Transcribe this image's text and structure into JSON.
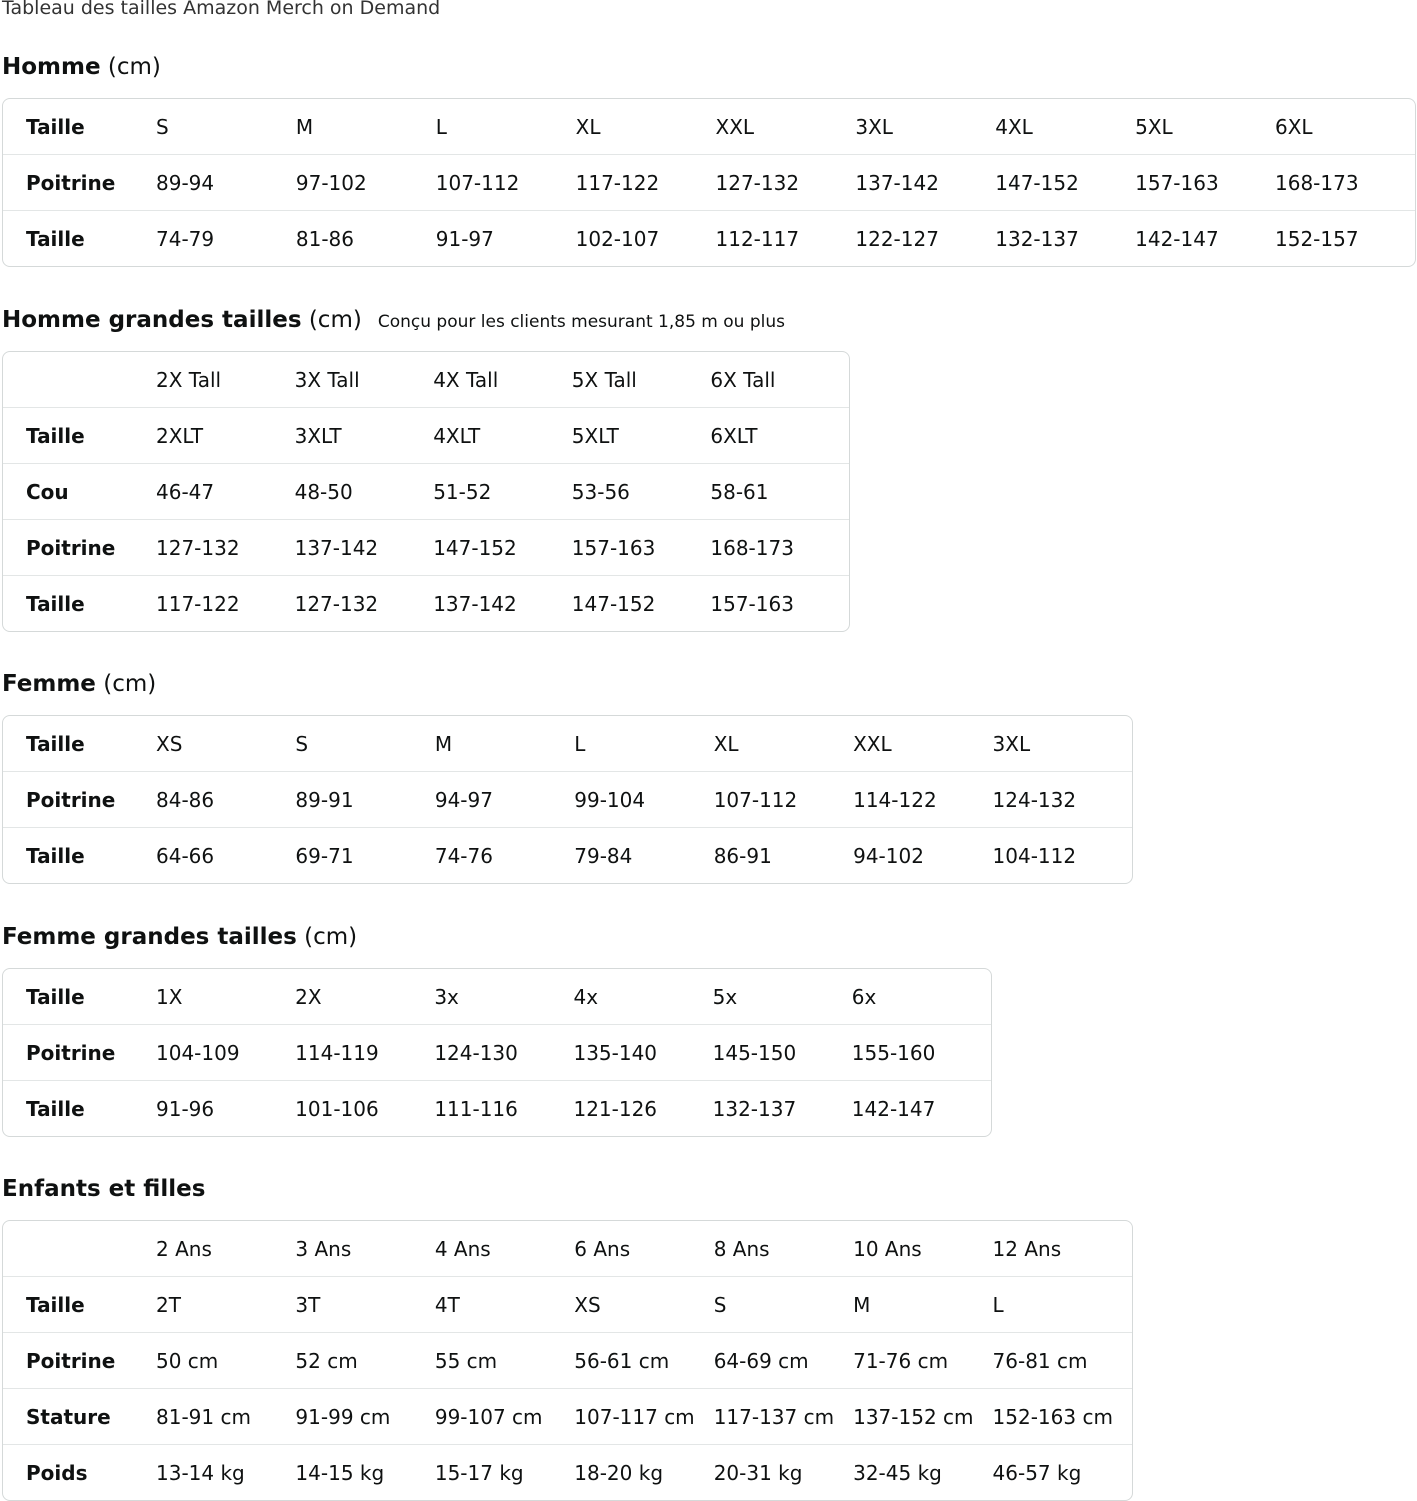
{
  "title": "Tableau des tailles Amazon Merch on Demand",
  "sections": [
    {
      "name": "Homme",
      "unit": "(cm)",
      "note": "",
      "rows": [
        {
          "label": "Taille",
          "cells": [
            "S",
            "M",
            "L",
            "XL",
            "XXL",
            "3XL",
            "4XL",
            "5XL",
            "6XL"
          ]
        },
        {
          "label": "Poitrine",
          "cells": [
            "89-94",
            "97-102",
            "107-112",
            "117-122",
            "127-132",
            "137-142",
            "147-152",
            "157-163",
            "168-173"
          ]
        },
        {
          "label": "Taille",
          "cells": [
            "74-79",
            "81-86",
            "91-97",
            "102-107",
            "112-117",
            "122-127",
            "132-137",
            "142-147",
            "152-157"
          ]
        }
      ]
    },
    {
      "name": "Homme grandes tailles",
      "unit": "(cm)",
      "note": "Conçu pour les clients mesurant 1,85 m ou plus",
      "rows": [
        {
          "label": "",
          "cells": [
            "2X Tall",
            "3X Tall",
            "4X Tall",
            "5X Tall",
            "6X Tall"
          ]
        },
        {
          "label": "Taille",
          "cells": [
            "2XLT",
            "3XLT",
            "4XLT",
            "5XLT",
            "6XLT"
          ]
        },
        {
          "label": "Cou",
          "cells": [
            "46-47",
            "48-50",
            "51-52",
            "53-56",
            "58-61"
          ]
        },
        {
          "label": "Poitrine",
          "cells": [
            "127-132",
            "137-142",
            "147-152",
            "157-163",
            "168-173"
          ]
        },
        {
          "label": "Taille",
          "cells": [
            "117-122",
            "127-132",
            "137-142",
            "147-152",
            "157-163"
          ]
        }
      ]
    },
    {
      "name": "Femme",
      "unit": "(cm)",
      "note": "",
      "rows": [
        {
          "label": "Taille",
          "cells": [
            "XS",
            "S",
            "M",
            "L",
            "XL",
            "XXL",
            "3XL"
          ]
        },
        {
          "label": "Poitrine",
          "cells": [
            "84-86",
            "89-91",
            "94-97",
            "99-104",
            "107-112",
            "114-122",
            "124-132"
          ]
        },
        {
          "label": "Taille",
          "cells": [
            "64-66",
            "69-71",
            "74-76",
            "79-84",
            "86-91",
            "94-102",
            "104-112"
          ]
        }
      ]
    },
    {
      "name": "Femme grandes tailles",
      "unit": "(cm)",
      "note": "",
      "rows": [
        {
          "label": "Taille",
          "cells": [
            "1X",
            "2X",
            "3x",
            "4x",
            "5x",
            "6x"
          ]
        },
        {
          "label": "Poitrine",
          "cells": [
            "104-109",
            "114-119",
            "124-130",
            "135-140",
            "145-150",
            "155-160"
          ]
        },
        {
          "label": "Taille",
          "cells": [
            "91-96",
            "101-106",
            "111-116",
            "121-126",
            "132-137",
            "142-147"
          ]
        }
      ]
    },
    {
      "name": "Enfants et filles",
      "unit": "",
      "note": "",
      "rows": [
        {
          "label": "",
          "cells": [
            "2 Ans",
            "3 Ans",
            "4 Ans",
            "6 Ans",
            "8 Ans",
            "10 Ans",
            "12 Ans"
          ]
        },
        {
          "label": "Taille",
          "cells": [
            "2T",
            "3T",
            "4T",
            "XS",
            "S",
            "M",
            "L"
          ]
        },
        {
          "label": "Poitrine",
          "cells": [
            "50 cm",
            "52 cm",
            "55 cm",
            "56-61 cm",
            "64-69 cm",
            "71-76 cm",
            "76-81 cm"
          ]
        },
        {
          "label": "Stature",
          "cells": [
            "81-91 cm",
            "91-99 cm",
            "99-107 cm",
            "107-117 cm",
            "117-137 cm",
            "137-152 cm",
            "152-163 cm"
          ]
        },
        {
          "label": "Poids",
          "cells": [
            "13-14 kg",
            "14-15 kg",
            "15-17 kg",
            "18-20 kg",
            "20-31 kg",
            "32-45 kg",
            "46-57 kg"
          ]
        }
      ]
    }
  ]
}
